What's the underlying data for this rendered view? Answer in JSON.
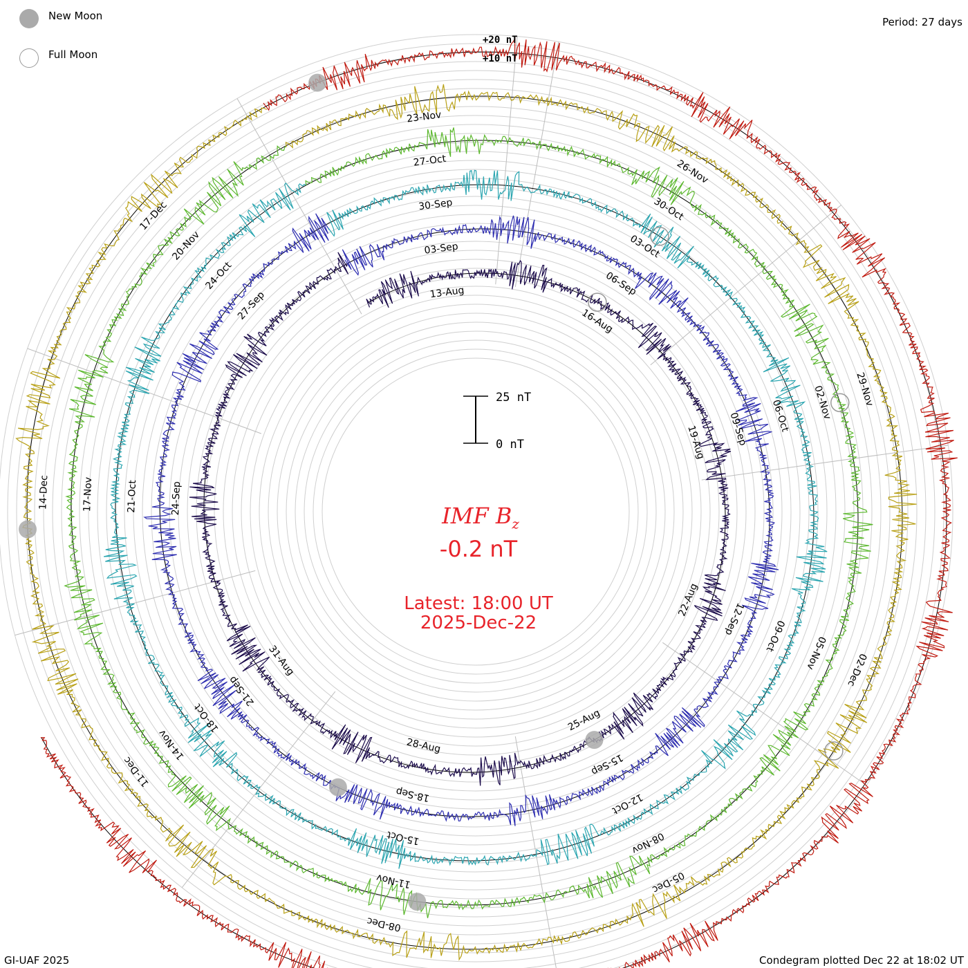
{
  "legend": {
    "new_moon_label": "New Moon",
    "full_moon_label": "Full Moon",
    "new_moon_color": "#aaaaaa",
    "full_moon_color": "#999999"
  },
  "period_label": "Period: 27 days",
  "footer_left": "GI-UAF 2025",
  "footer_right": "Condegram plotted Dec 22 at 18:02 UT",
  "scale": {
    "ring_labels": [
      "+20 nT",
      "+10 nT"
    ],
    "bar_top_label": "25 nT",
    "bar_bottom_label": "0 nT"
  },
  "readout": {
    "parameter": "IMF B",
    "subscript": "z",
    "value": "-0.2 nT",
    "latest_label": "Latest: 18:00 UT",
    "latest_date": "2025-Dec-22",
    "color": "#e8232a"
  },
  "chart_data": {
    "type": "line",
    "form": "spiral condegram",
    "parameter": "IMF Bz",
    "units": "nT",
    "period_days": 27,
    "latest_value_nT": -0.2,
    "latest_time": "2025-Dec-22 18:00 UT",
    "series": [
      {
        "color": "#1a0a4a",
        "date_labels": [
          "13-Aug",
          "16-Aug",
          "19-Aug",
          "22-Aug",
          "25-Aug",
          "28-Aug",
          "31-Aug"
        ]
      },
      {
        "color": "#2c2cb0",
        "date_labels": [
          "03-Sep",
          "06-Sep",
          "09-Sep",
          "12-Sep",
          "15-Sep",
          "18-Sep",
          "21-Sep",
          "24-Sep",
          "27-Sep"
        ]
      },
      {
        "color": "#2aa5b0",
        "date_labels": [
          "30-Sep",
          "03-Oct",
          "06-Oct",
          "09-Oct",
          "12-Oct",
          "15-Oct",
          "18-Oct",
          "21-Oct",
          "24-Oct"
        ]
      },
      {
        "color": "#5cb82e",
        "date_labels": [
          "27-Oct",
          "30-Oct",
          "02-Nov",
          "05-Nov",
          "08-Nov",
          "11-Nov",
          "14-Nov",
          "17-Nov",
          "20-Nov"
        ]
      },
      {
        "color": "#b8a015",
        "date_labels": [
          "23-Nov",
          "26-Nov",
          "29-Nov",
          "02-Dec",
          "05-Dec",
          "08-Dec",
          "11-Dec",
          "14-Dec",
          "17-Dec"
        ]
      },
      {
        "color": "#c01a10",
        "date_labels": []
      }
    ],
    "grid": true
  }
}
